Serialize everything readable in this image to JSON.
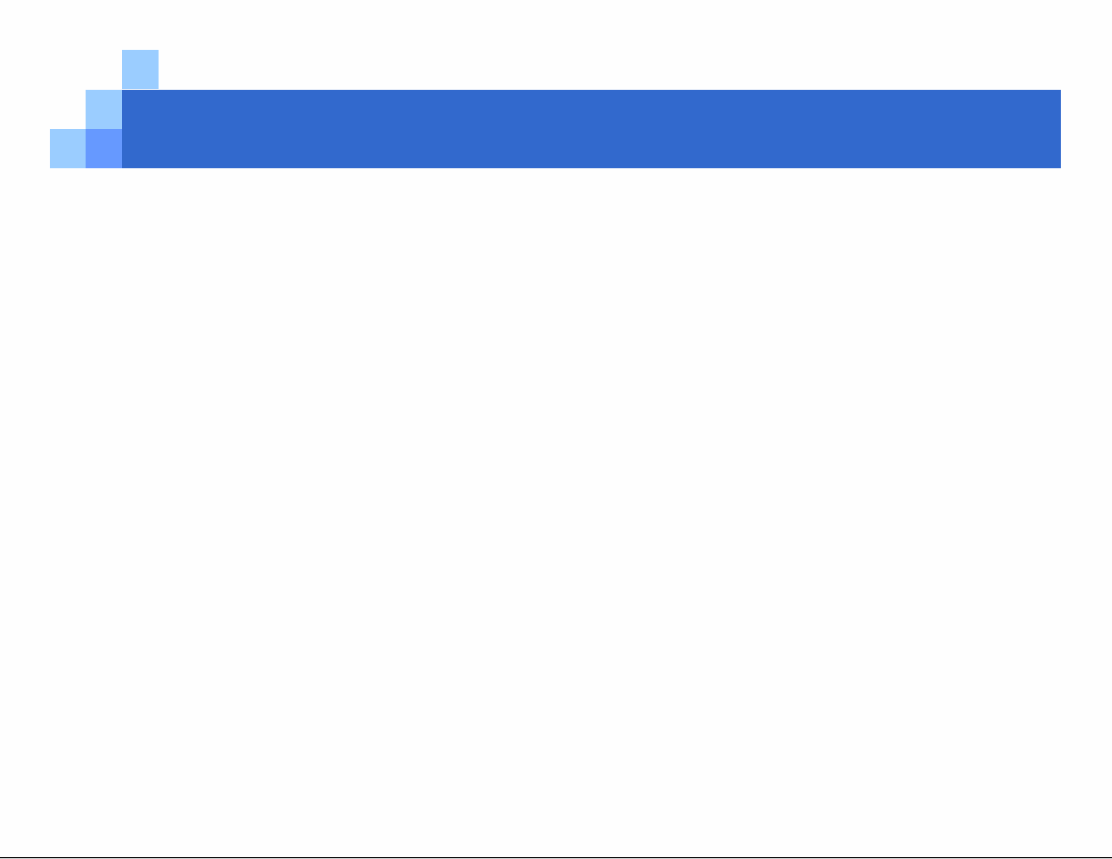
{
  "slide": {
    "colors": {
      "banner": "#3269cd",
      "square_light": "#9bcdff",
      "square_medium": "#6699ff",
      "bottom_line": "#111111",
      "background": "#fefefe"
    }
  }
}
